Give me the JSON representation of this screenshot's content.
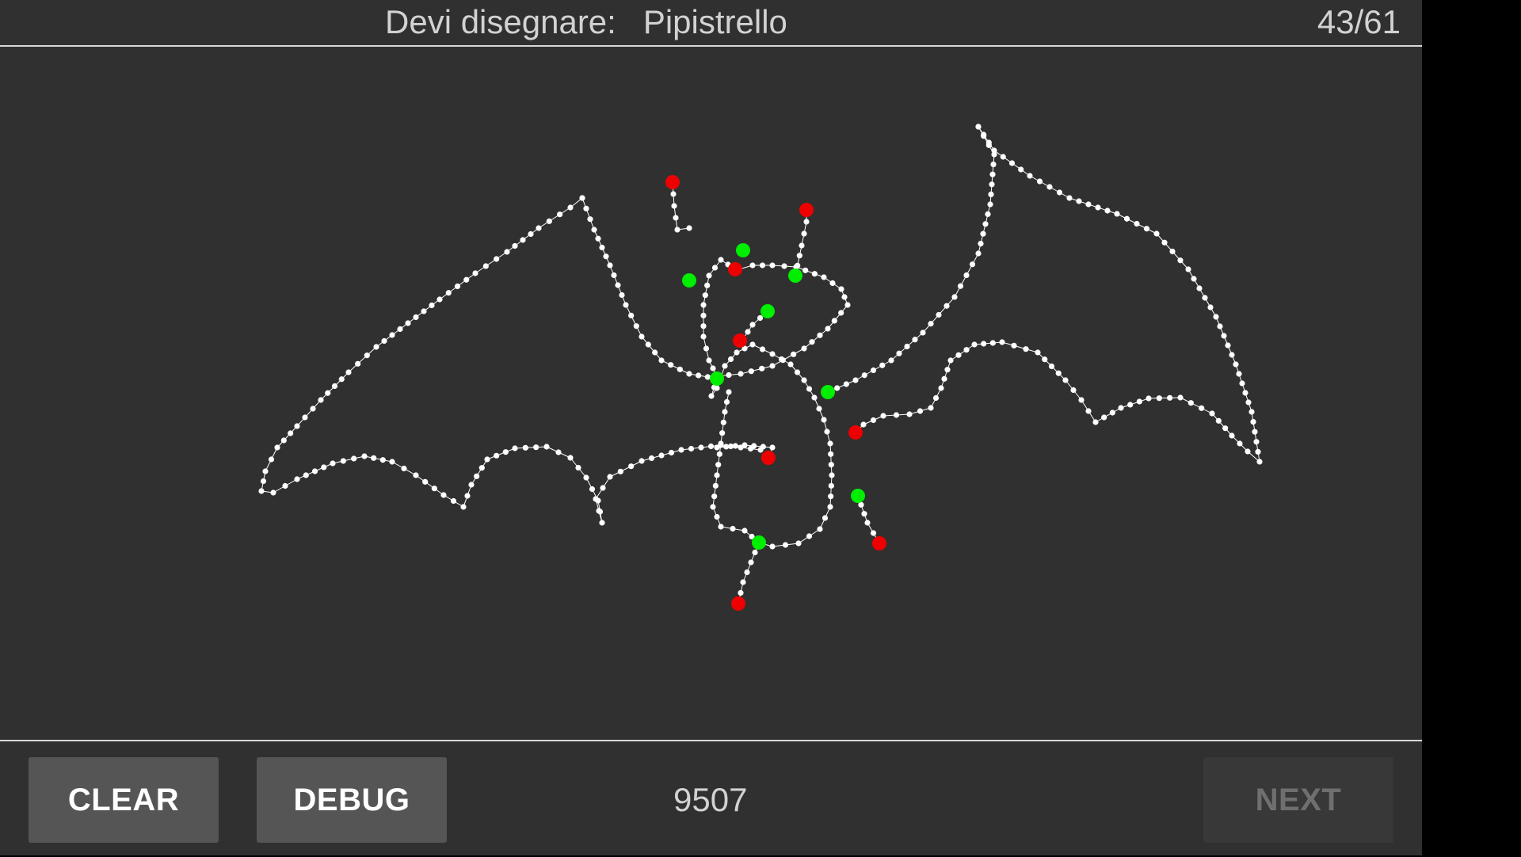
{
  "header": {
    "prompt_label": "Devi disegnare:",
    "target_word": "Pipistrello",
    "progress": "43/61"
  },
  "drawing": {
    "stroke_color": "#ffffff",
    "start_marker_color": "#00ee00",
    "end_marker_color": "#ee0000"
  },
  "footer": {
    "clear_label": "CLEAR",
    "debug_label": "DEBUG",
    "score": "9507",
    "next_label": "NEXT"
  }
}
